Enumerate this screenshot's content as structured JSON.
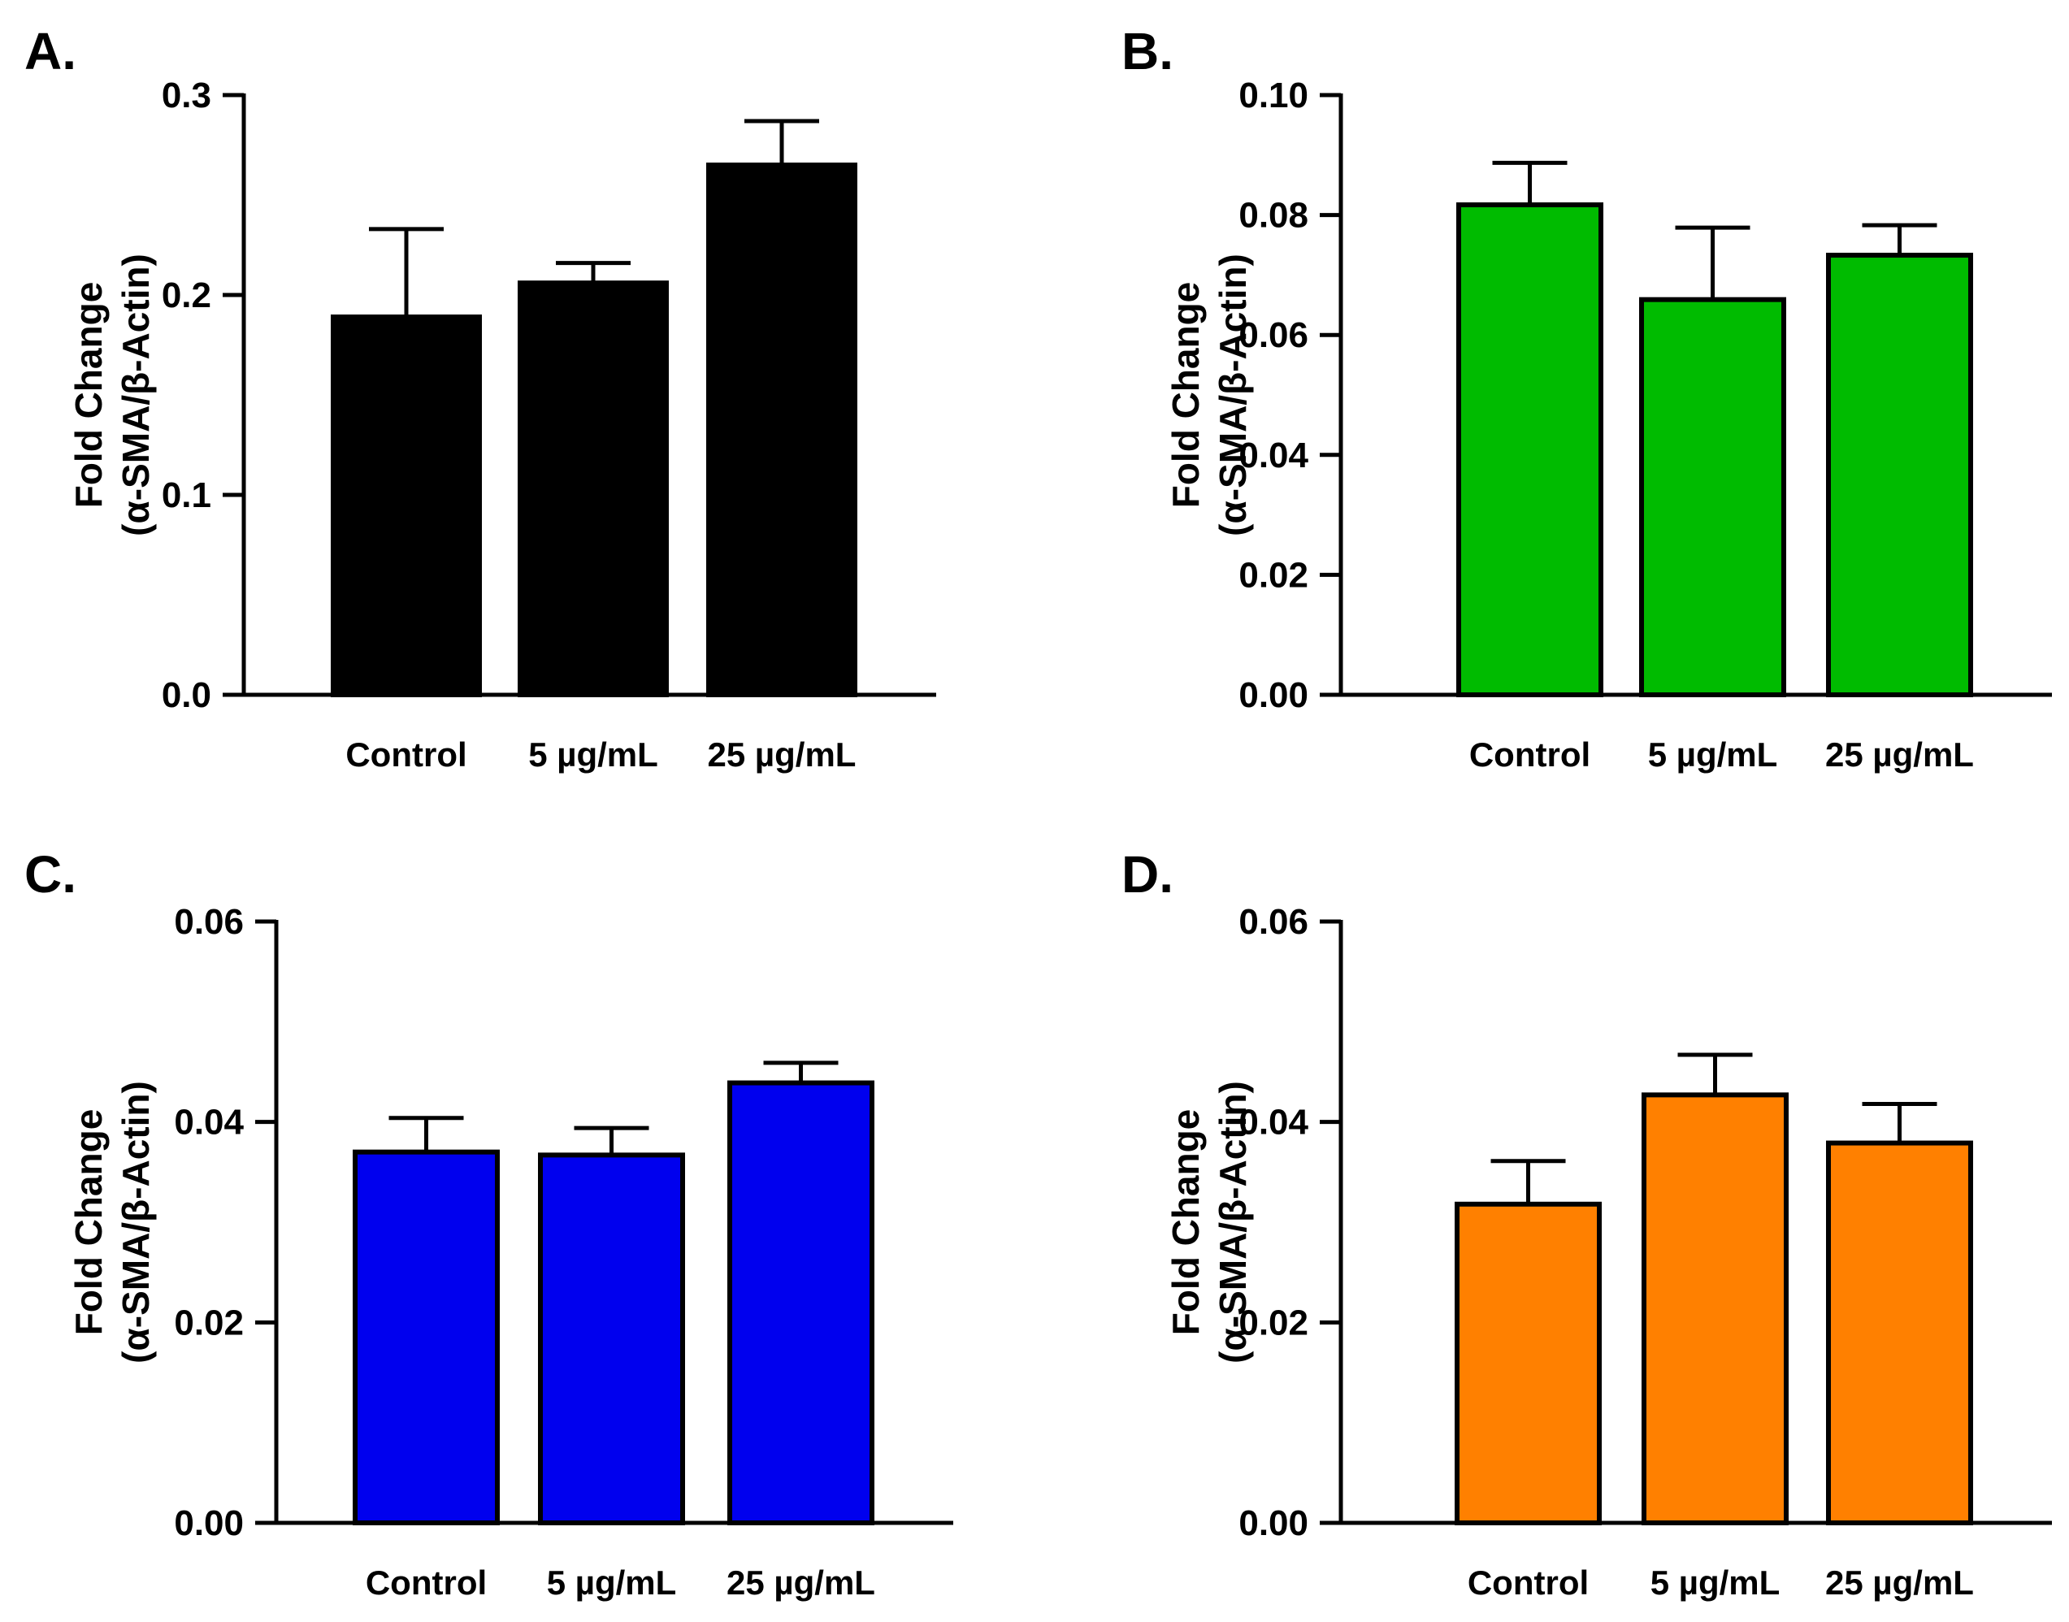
{
  "chart_data": [
    {
      "type": "bar",
      "panel": "A.",
      "categories": [
        "Control",
        "5 µg/mL",
        "25 µg/mL"
      ],
      "values": [
        0.189,
        0.206,
        0.265
      ],
      "errors": [
        0.044,
        0.01,
        0.022
      ],
      "ylabel_line1": "Fold Change",
      "ylabel_line2": "(α-SMA/β-Actin)",
      "ylim": [
        0,
        0.3
      ],
      "yticks": [
        "0.0",
        "0.1",
        "0.2",
        "0.3"
      ],
      "color": "#000000"
    },
    {
      "type": "bar",
      "panel": "B.",
      "categories": [
        "Control",
        "5 µg/mL",
        "25 µg/mL"
      ],
      "values": [
        0.0817,
        0.0659,
        0.0733
      ],
      "errors": [
        0.007,
        0.012,
        0.005
      ],
      "ylabel_line1": "Fold Change",
      "ylabel_line2": "(α-SMA/β-Actin)",
      "ylim": [
        0,
        0.1
      ],
      "yticks": [
        "0.00",
        "0.02",
        "0.04",
        "0.06",
        "0.08",
        "0.10"
      ],
      "color": "#00bb00"
    },
    {
      "type": "bar",
      "panel": "C.",
      "categories": [
        "Control",
        "5 µg/mL",
        "25 µg/mL"
      ],
      "values": [
        0.037,
        0.0367,
        0.0439
      ],
      "errors": [
        0.0034,
        0.0027,
        0.002
      ],
      "ylabel_line1": "Fold Change",
      "ylabel_line2": "(α-SMA/β-Actin)",
      "ylim": [
        0,
        0.06
      ],
      "yticks": [
        "0.00",
        "0.02",
        "0.04",
        "0.06"
      ],
      "color": "#0000ee"
    },
    {
      "type": "bar",
      "panel": "D.",
      "categories": [
        "Control",
        "5 µg/mL",
        "25 µg/mL"
      ],
      "values": [
        0.0318,
        0.0427,
        0.0379
      ],
      "errors": [
        0.0043,
        0.004,
        0.0039
      ],
      "ylabel_line1": "Fold Change",
      "ylabel_line2": "(α-SMA/β-Actin)",
      "ylim": [
        0,
        0.06
      ],
      "yticks": [
        "0.00",
        "0.02",
        "0.04",
        "0.06"
      ],
      "color": "#ff8000"
    }
  ]
}
